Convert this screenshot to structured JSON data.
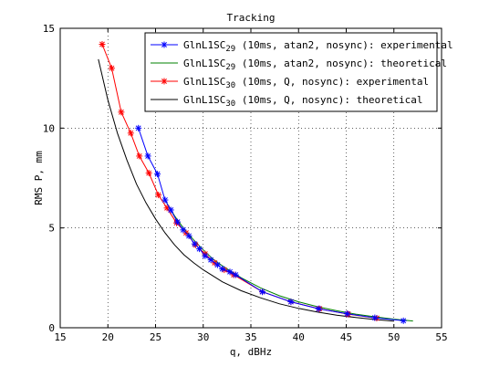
{
  "chart_data": {
    "type": "line",
    "title": "Tracking",
    "xlabel": "q, dBHz",
    "ylabel": "RMS P, mm",
    "xlim": [
      15,
      55
    ],
    "ylim": [
      0,
      15
    ],
    "xticks": [
      "15",
      "20",
      "25",
      "30",
      "35",
      "40",
      "45",
      "50",
      "55"
    ],
    "yticks": [
      "0",
      "5",
      "10",
      "15"
    ],
    "grid": true,
    "legend_position": "top-right",
    "series": [
      {
        "name_base": "GlnL1SC",
        "name_sub": "29",
        "name_rest": " (10ms, atan2, nosync): experimental",
        "color": "#0000ff",
        "marker": "asterisk",
        "x": [
          23.2,
          24.2,
          25.2,
          26.0,
          26.6,
          27.3,
          27.9,
          28.5,
          29.1,
          29.6,
          30.2,
          30.8,
          31.5,
          32.0,
          32.8,
          33.4,
          36.2,
          39.2,
          42.1,
          45.1,
          48.0,
          51.0
        ],
        "y": [
          10.0,
          8.6,
          7.7,
          6.4,
          5.9,
          5.3,
          4.9,
          4.6,
          4.2,
          3.95,
          3.6,
          3.4,
          3.15,
          2.95,
          2.8,
          2.65,
          1.8,
          1.3,
          0.95,
          0.7,
          0.5,
          0.35
        ]
      },
      {
        "name_base": "GlnL1SC",
        "name_sub": "29",
        "name_rest": " (10ms, atan2, nosync): theoretical",
        "color": "#008000",
        "marker": "none",
        "x": [
          26.0,
          27.0,
          28.0,
          29.0,
          30.0,
          31.0,
          32.0,
          33.0,
          34.0,
          36.0,
          38.0,
          40.0,
          42.0,
          44.0,
          46.0,
          48.0,
          50.0,
          52.0
        ],
        "y": [
          6.4,
          5.6,
          4.95,
          4.4,
          3.9,
          3.45,
          3.1,
          2.8,
          2.5,
          2.0,
          1.6,
          1.3,
          1.05,
          0.85,
          0.68,
          0.55,
          0.43,
          0.34
        ]
      },
      {
        "name_base": "GlnL1SC",
        "name_sub": "30",
        "name_rest": " (10ms, Q, nosync): experimental",
        "color": "#ff0000",
        "marker": "asterisk",
        "x": [
          19.4,
          20.4,
          21.4,
          22.4,
          23.3,
          24.3,
          25.3,
          26.2,
          27.2,
          28.2,
          29.2,
          30.2,
          31.2,
          32.2,
          33.2,
          36.2,
          39.2,
          42.2,
          45.2,
          48.2
        ],
        "y": [
          14.2,
          13.0,
          10.8,
          9.75,
          8.6,
          7.75,
          6.65,
          6.0,
          5.25,
          4.75,
          4.15,
          3.7,
          3.25,
          2.9,
          2.65,
          1.8,
          1.3,
          0.95,
          0.68,
          0.48
        ]
      },
      {
        "name_base": "GlnL1SC",
        "name_sub": "30",
        "name_rest": " (10ms, Q, nosync): theoretical",
        "color": "#000000",
        "marker": "none",
        "x": [
          19.0,
          20.0,
          21.0,
          22.0,
          23.0,
          24.0,
          25.0,
          26.0,
          27.0,
          28.0,
          29.0,
          30.0,
          31.0,
          32.0,
          34.0,
          36.0,
          38.0,
          40.0,
          42.0,
          44.0,
          46.0,
          48.0,
          50.0
        ],
        "y": [
          13.45,
          11.4,
          9.75,
          8.4,
          7.2,
          6.25,
          5.45,
          4.75,
          4.15,
          3.65,
          3.25,
          2.9,
          2.6,
          2.3,
          1.85,
          1.5,
          1.2,
          0.97,
          0.78,
          0.63,
          0.51,
          0.41,
          0.33
        ]
      }
    ]
  }
}
